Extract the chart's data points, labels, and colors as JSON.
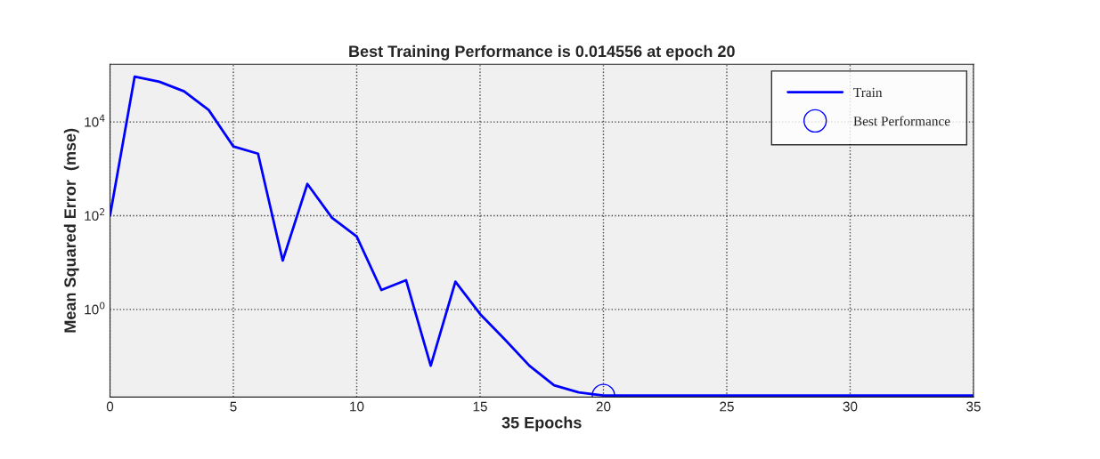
{
  "chart_data": {
    "type": "line",
    "title": "Best Training Performance is 0.014556 at epoch 20",
    "xlabel": "35 Epochs",
    "ylabel": "Mean Squared Error  (mse)",
    "log": "y",
    "grid": true,
    "legend": "top right",
    "xlim": [
      0,
      35
    ],
    "xticks": [
      0,
      5,
      10,
      15,
      20,
      25,
      30,
      35
    ],
    "ylim": [
      0.0135,
      170000
    ],
    "yticks": [
      {
        "value": 1,
        "label": "10$^{0}$"
      },
      {
        "value": 100,
        "label": "10$^{2}$"
      },
      {
        "value": 10000,
        "label": "10$^{4}$"
      }
    ],
    "series": [
      {
        "name": "Train",
        "color": "#0000ff",
        "marker": "none",
        "x": [
          0,
          1,
          2,
          3,
          4,
          5,
          6,
          7,
          8,
          9,
          10,
          11,
          12,
          13,
          14,
          15,
          16,
          17,
          18,
          19,
          20,
          21,
          22,
          23,
          24,
          25,
          26,
          27,
          28,
          29,
          30,
          31,
          32,
          33,
          34,
          35
        ],
        "values": [
          100,
          93000,
          72000,
          45000,
          18000,
          3000,
          2100,
          11,
          475,
          90,
          36,
          2.6,
          4.2,
          0.063,
          3.9,
          0.8,
          0.23,
          0.063,
          0.024,
          0.017,
          0.014556,
          0.014556,
          0.014556,
          0.014556,
          0.014556,
          0.014556,
          0.014556,
          0.014556,
          0.014556,
          0.014556,
          0.014556,
          0.014556,
          0.014556,
          0.014556,
          0.014556,
          0.014556
        ]
      },
      {
        "name": "Best Performance",
        "type": "scatter",
        "color": "#0000ff",
        "marker": "circle",
        "x": [
          20
        ],
        "values": [
          0.014556
        ]
      }
    ]
  }
}
